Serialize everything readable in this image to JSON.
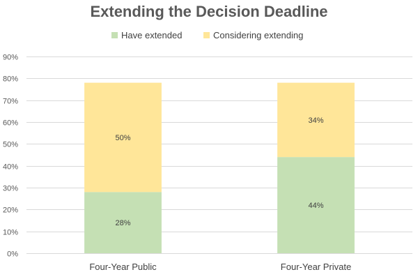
{
  "chart_data": {
    "type": "bar",
    "stacked": true,
    "title": "Extending the Decision Deadline",
    "categories": [
      "Four-Year Public",
      "Four-Year Private"
    ],
    "series": [
      {
        "name": "Have extended",
        "values": [
          28,
          44
        ],
        "labels": [
          "28%",
          "44%"
        ],
        "color": "#c5e0b4"
      },
      {
        "name": "Considering extending",
        "values": [
          50,
          34
        ],
        "labels": [
          "50%",
          "34%"
        ],
        "color": "#ffe699"
      }
    ],
    "ylim": [
      0,
      90
    ],
    "yticks": [
      "0%",
      "10%",
      "20%",
      "30%",
      "40%",
      "50%",
      "60%",
      "70%",
      "80%",
      "90%"
    ],
    "ytick_values": [
      0,
      10,
      20,
      30,
      40,
      50,
      60,
      70,
      80,
      90
    ],
    "grid": true,
    "legend_position": "top"
  }
}
